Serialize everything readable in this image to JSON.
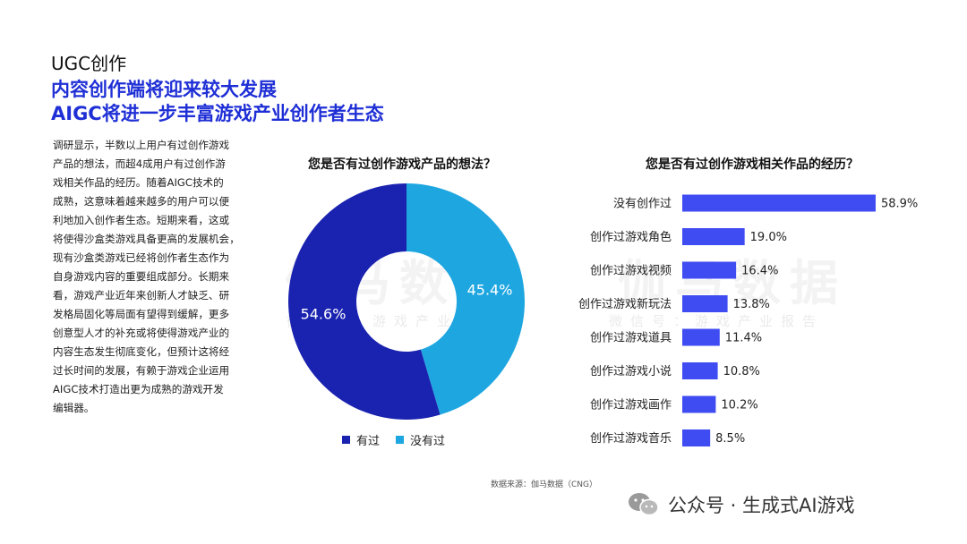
{
  "header": {
    "section_label": "UGC创作",
    "headline_line1": "内容创作端将迎来较大发展",
    "headline_line2": "AIGC将进一步丰富游戏产业创作者生态"
  },
  "body_lines": [
    "调研显示，半数以上用户有过创作游戏",
    "产品的想法，而超4成用户有过创作游",
    "戏相关作品的经历。随着AIGC技术的",
    "成熟，这意味着越来越多的用户可以便",
    "利地加入创作者生态。短期来看，这或",
    "将使得沙盒类游戏具备更高的发展机会，",
    "现有沙盒类游戏已经将创作者生态作为",
    "自身游戏内容的重要组成部分。长期来",
    "看，游戏产业近年来创新人才缺乏、研",
    "发格局固化等局面有望得到缓解，更多",
    "创意型人才的补充或将使得游戏产业的",
    "内容生态发生彻底变化，但预计这将经",
    "过长时间的发展，有赖于游戏企业运用",
    "AIGC技术打造出更为成熟的游戏开发",
    "编辑器。"
  ],
  "watermark": {
    "main": "伽马数据",
    "sub": "微信号：游戏产业报告"
  },
  "chart_data": [
    {
      "type": "pie",
      "title": "您是否有过创作游戏产品的想法？",
      "labels": [
        "有过",
        "没有过"
      ],
      "values": [
        54.6,
        45.4
      ],
      "value_labels": [
        "54.6%",
        "45.4%"
      ],
      "colors": [
        "#1a22b0",
        "#1ea6e0"
      ],
      "donut": true,
      "legend": "bottom"
    },
    {
      "type": "bar",
      "orientation": "horizontal",
      "title": "您是否有过创作游戏相关作品的经历？",
      "categories": [
        "没有创作过",
        "创作过游戏角色",
        "创作过游戏视频",
        "创作过游戏新玩法",
        "创作过游戏道具",
        "创作过游戏小说",
        "创作过游戏画作",
        "创作过游戏音乐"
      ],
      "values": [
        58.9,
        19.0,
        16.4,
        13.8,
        11.4,
        10.8,
        10.2,
        8.5
      ],
      "value_labels": [
        "58.9%",
        "19.0%",
        "16.4%",
        "13.8%",
        "11.4%",
        "10.8%",
        "10.2%",
        "8.5%"
      ],
      "color": "#3f4cf2",
      "xlim": [
        0,
        60
      ]
    }
  ],
  "source": "数据来源：伽马数据（CNG）",
  "footer": {
    "brand": "公众号 · 生成式AI游戏",
    "icon": "wechat-icon"
  }
}
